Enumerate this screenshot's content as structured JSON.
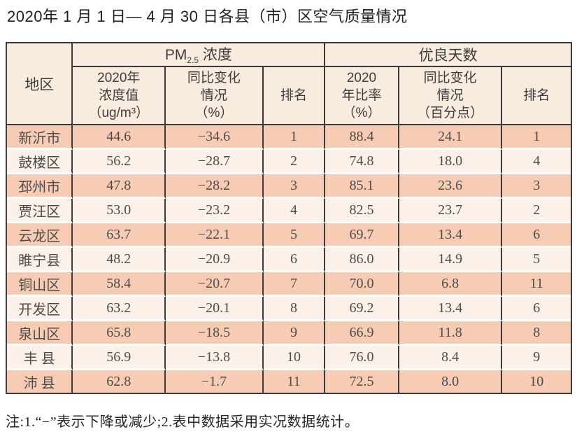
{
  "page": {
    "title": "2020年 1 月 1 日— 4 月 30 日各县（市）区空气质量情况",
    "footnote": "注:1.“−”表示下降或减少;2.表中数据采用实况数据统计。"
  },
  "colors": {
    "row_odd_bg": "#f8ccb4",
    "row_even_bg": "#fbf1e9",
    "header_bg": "#f9ecdf",
    "border": "#3b3b3b",
    "text": "#4c4c4c"
  },
  "table": {
    "region_header": "地区",
    "groups": {
      "pm25": {
        "prefix": "PM",
        "sub": "2.5",
        "suffix": " 浓度"
      },
      "good_days": {
        "label": "优良天数"
      }
    },
    "sub_headers": {
      "pm_value": "2020年\n浓度值\n（ug/m³）",
      "pm_change": "同比变化\n情况\n（%）",
      "pm_rank": "排名",
      "good_ratio": "2020\n年比率\n（%）",
      "good_change": "同比变化\n情况\n（百分点）",
      "good_rank": "排名"
    },
    "rows": [
      [
        "新沂市",
        "44.6",
        "−34.6",
        "1",
        "88.4",
        "24.1",
        "1"
      ],
      [
        "鼓楼区",
        "56.2",
        "−28.7",
        "2",
        "74.8",
        "18.0",
        "4"
      ],
      [
        "邳州市",
        "47.8",
        "−28.2",
        "3",
        "85.1",
        "23.6",
        "3"
      ],
      [
        "贾汪区",
        "53.0",
        "−23.2",
        "4",
        "82.5",
        "23.7",
        "2"
      ],
      [
        "云龙区",
        "63.7",
        "−22.1",
        "5",
        "69.7",
        "13.4",
        "6"
      ],
      [
        "睢宁县",
        "48.2",
        "−20.9",
        "6",
        "86.0",
        "14.9",
        "5"
      ],
      [
        "铜山区",
        "58.4",
        "−20.7",
        "7",
        "70.0",
        "6.8",
        "11"
      ],
      [
        "开发区",
        "63.2",
        "−20.1",
        "8",
        "69.2",
        "13.4",
        "6"
      ],
      [
        "泉山区",
        "65.8",
        "−18.5",
        "9",
        "66.9",
        "11.8",
        "8"
      ],
      [
        "丰 县",
        "56.9",
        "−13.8",
        "10",
        "76.0",
        "8.4",
        "9"
      ],
      [
        "沛 县",
        "62.8",
        "−1.7",
        "11",
        "72.5",
        "8.0",
        "10"
      ]
    ]
  }
}
